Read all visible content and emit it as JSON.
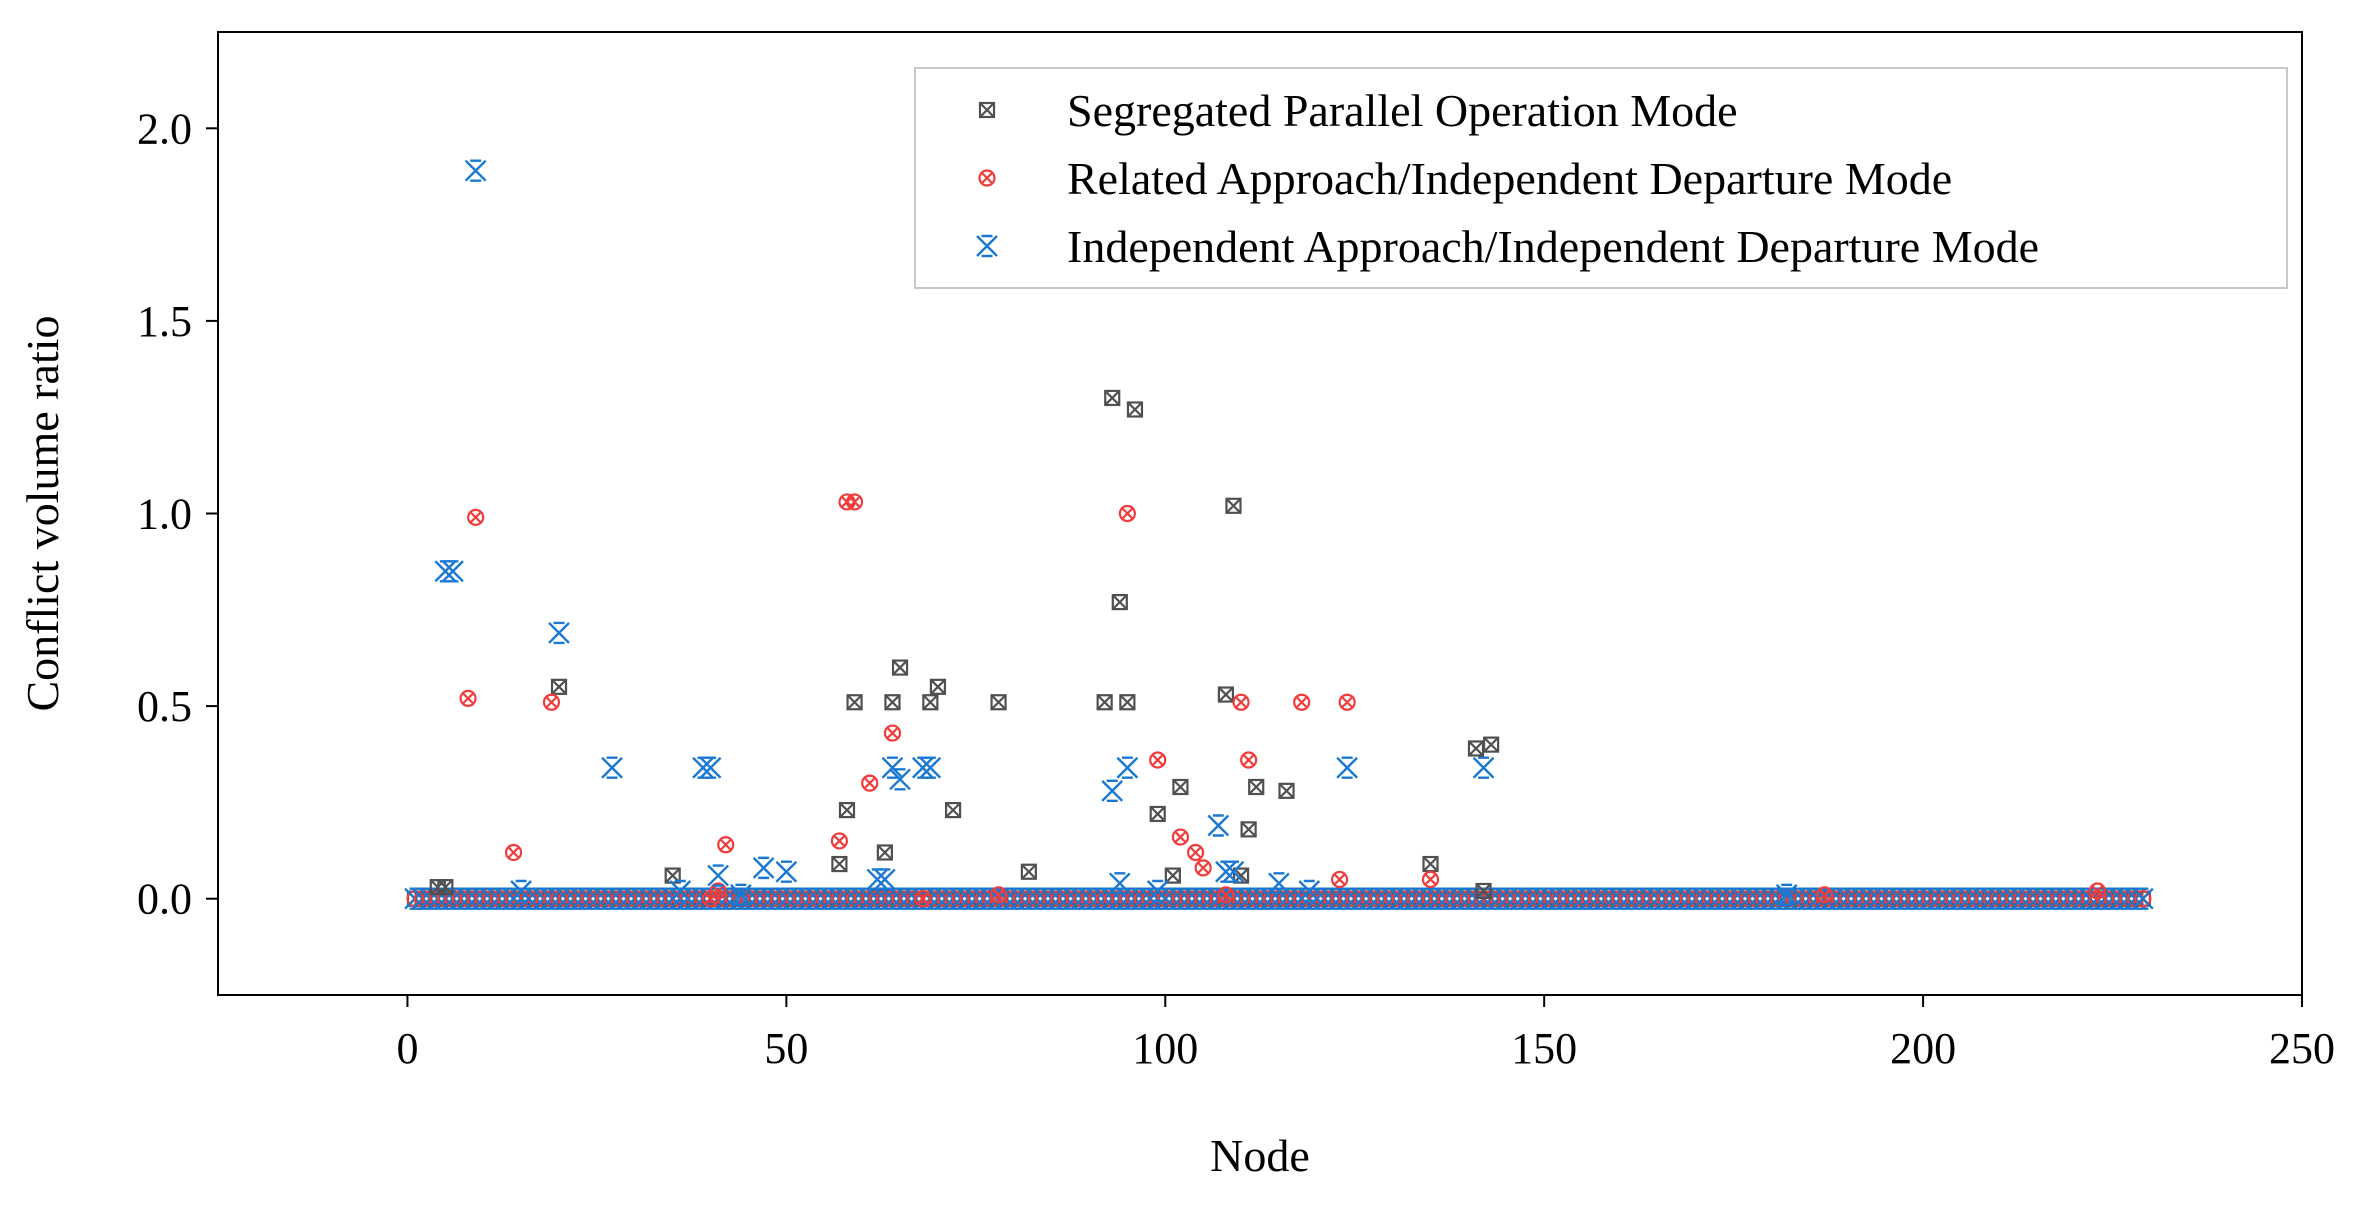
{
  "chart_data": {
    "type": "scatter",
    "xlabel": "Node",
    "ylabel": "Conflict volume ratio",
    "xlim": [
      -25,
      250
    ],
    "ylim": [
      -0.25,
      2.25
    ],
    "xticks": [
      0,
      50,
      100,
      150,
      200,
      250
    ],
    "yticks": [
      0.0,
      0.5,
      1.0,
      1.5,
      2.0
    ],
    "xtick_labels": [
      "0",
      "50",
      "100",
      "150",
      "200",
      "250"
    ],
    "ytick_labels": [
      "0.0",
      "0.5",
      "1.0",
      "1.5",
      "2.0"
    ],
    "legend_position": "top-right",
    "grid": false,
    "baseline": {
      "x_start": 1,
      "x_end": 229,
      "y": 0.0
    },
    "series": [
      {
        "name": "Segregated Parallel Operation Mode",
        "color": "#505050",
        "marker": "square-x",
        "points": [
          [
            4,
            0.03
          ],
          [
            5,
            0.03
          ],
          [
            20,
            0.55
          ],
          [
            35,
            0.06
          ],
          [
            57,
            0.09
          ],
          [
            58,
            0.23
          ],
          [
            59,
            0.51
          ],
          [
            63,
            0.12
          ],
          [
            64,
            0.51
          ],
          [
            65,
            0.6
          ],
          [
            69,
            0.51
          ],
          [
            70,
            0.55
          ],
          [
            72,
            0.23
          ],
          [
            78,
            0.51
          ],
          [
            82,
            0.07
          ],
          [
            92,
            0.51
          ],
          [
            93,
            1.3
          ],
          [
            94,
            0.77
          ],
          [
            95,
            0.51
          ],
          [
            96,
            1.27
          ],
          [
            99,
            0.22
          ],
          [
            101,
            0.06
          ],
          [
            102,
            0.29
          ],
          [
            108,
            0.53
          ],
          [
            109,
            1.02
          ],
          [
            110,
            0.06
          ],
          [
            111,
            0.18
          ],
          [
            112,
            0.29
          ],
          [
            116,
            0.28
          ],
          [
            135,
            0.09
          ],
          [
            141,
            0.39
          ],
          [
            142,
            0.02
          ],
          [
            143,
            0.4
          ]
        ]
      },
      {
        "name": "Related Approach/Independent Departure Mode",
        "color": "#f23b3b",
        "marker": "circle-x",
        "points": [
          [
            8,
            0.52
          ],
          [
            9,
            0.99
          ],
          [
            14,
            0.12
          ],
          [
            19,
            0.51
          ],
          [
            40,
            0.0
          ],
          [
            41,
            0.02
          ],
          [
            42,
            0.14
          ],
          [
            57,
            0.15
          ],
          [
            58,
            1.03
          ],
          [
            59,
            1.03
          ],
          [
            61,
            0.3
          ],
          [
            64,
            0.43
          ],
          [
            68,
            0.0
          ],
          [
            78,
            0.01
          ],
          [
            95,
            1.0
          ],
          [
            99,
            0.36
          ],
          [
            102,
            0.16
          ],
          [
            104,
            0.12
          ],
          [
            105,
            0.08
          ],
          [
            108,
            0.01
          ],
          [
            110,
            0.51
          ],
          [
            111,
            0.36
          ],
          [
            118,
            0.51
          ],
          [
            123,
            0.05
          ],
          [
            124,
            0.51
          ],
          [
            135,
            0.05
          ],
          [
            187,
            0.01
          ],
          [
            223,
            0.02
          ]
        ]
      },
      {
        "name": "Independent Approach/Independent Departure Mode",
        "color": "#1a78d2",
        "marker": "x-wing",
        "points": [
          [
            5,
            0.85
          ],
          [
            6,
            0.85
          ],
          [
            9,
            1.89
          ],
          [
            15,
            0.02
          ],
          [
            20,
            0.69
          ],
          [
            27,
            0.34
          ],
          [
            36,
            0.02
          ],
          [
            39,
            0.34
          ],
          [
            40,
            0.34
          ],
          [
            41,
            0.06
          ],
          [
            44,
            0.01
          ],
          [
            47,
            0.08
          ],
          [
            50,
            0.07
          ],
          [
            62,
            0.05
          ],
          [
            63,
            0.05
          ],
          [
            64,
            0.34
          ],
          [
            65,
            0.31
          ],
          [
            68,
            0.34
          ],
          [
            69,
            0.34
          ],
          [
            93,
            0.28
          ],
          [
            94,
            0.04
          ],
          [
            95,
            0.34
          ],
          [
            99,
            0.02
          ],
          [
            107,
            0.19
          ],
          [
            108,
            0.07
          ],
          [
            109,
            0.07
          ],
          [
            115,
            0.04
          ],
          [
            119,
            0.02
          ],
          [
            124,
            0.34
          ],
          [
            142,
            0.34
          ],
          [
            182,
            0.01
          ]
        ]
      }
    ]
  }
}
